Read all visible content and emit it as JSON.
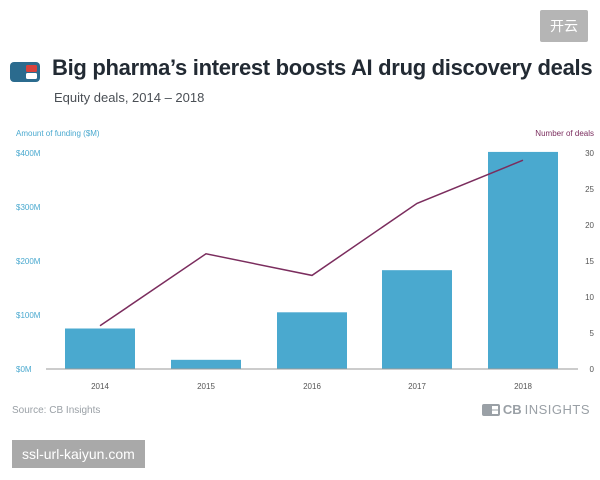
{
  "badge": "开云",
  "header": {
    "title": "Big pharma’s interest boosts AI drug discovery deals",
    "subtitle": "Equity deals, 2014 – 2018"
  },
  "footer": {
    "source": "Source: CB Insights",
    "brand_bold": "CB",
    "brand_light": "INSIGHTS"
  },
  "watermark": "ssl-url-kaiyun.com",
  "colors": {
    "bar": "#4aa9cf",
    "line": "#7b2d5e",
    "left_axis_text": "#4aa9cf",
    "right_axis_text": "#7b2d5e",
    "logo_blue": "#2b6b8e",
    "logo_red": "#d8423c"
  },
  "chart_data": {
    "type": "bar",
    "categories": [
      "2014",
      "2015",
      "2016",
      "2017",
      "2018"
    ],
    "series": [
      {
        "name": "Amount of funding ($M)",
        "type": "bar",
        "axis": "left",
        "values": [
          75,
          17,
          105,
          183,
          402
        ]
      },
      {
        "name": "Number of deals",
        "type": "line",
        "axis": "right",
        "values": [
          6,
          16,
          13,
          23,
          29
        ]
      }
    ],
    "left_axis": {
      "label": "Amount of funding ($M)",
      "range": [
        0,
        400
      ],
      "ticks": [
        0,
        100,
        200,
        300,
        400
      ],
      "tick_labels": [
        "$0M",
        "$100M",
        "$200M",
        "$300M",
        "$400M"
      ]
    },
    "right_axis": {
      "label": "Number of deals",
      "range": [
        0,
        30
      ],
      "ticks": [
        0,
        5,
        10,
        15,
        20,
        25,
        30
      ],
      "tick_labels": [
        "0",
        "5",
        "10",
        "15",
        "20",
        "25",
        "30"
      ]
    },
    "grid": false
  }
}
